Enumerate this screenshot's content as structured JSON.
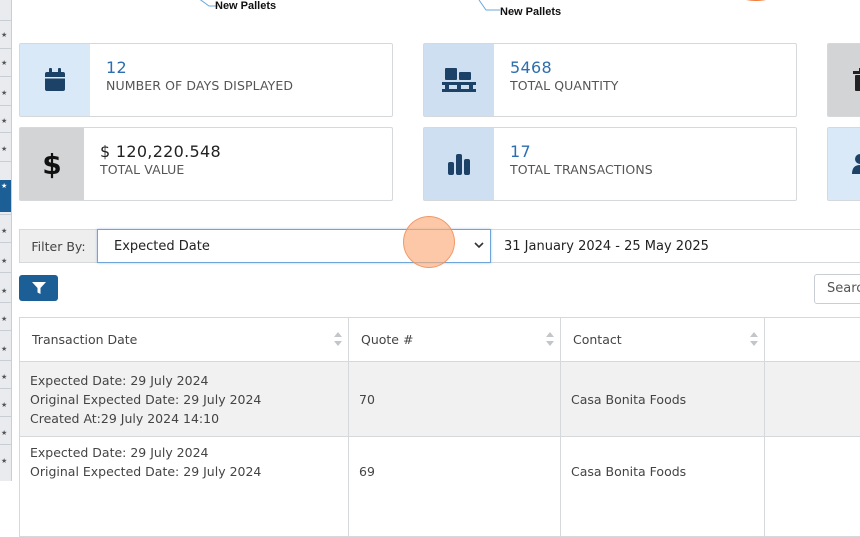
{
  "top_chart_labels": [
    "New Pallets",
    "New Pallets"
  ],
  "colors": {
    "accent": "#2c6eaf",
    "primary_button": "#1c5f97",
    "icon_dark": "#1d4268"
  },
  "cards": [
    {
      "value": "12",
      "label": "NUMBER OF DAYS DISPLAYED",
      "icon": "calendar-icon"
    },
    {
      "value": "5468",
      "label": "TOTAL QUANTITY",
      "icon": "pallet-icon"
    },
    {
      "value": "$ 120,220.548",
      "label": "TOTAL VALUE",
      "icon": "dollar-icon"
    },
    {
      "value": "17",
      "label": "TOTAL TRANSACTIONS",
      "icon": "bar-chart-icon"
    }
  ],
  "filter": {
    "label": "Filter By:",
    "selected": "Expected Date",
    "date_range": "31 January 2024 - 25 May 2025"
  },
  "search": {
    "placeholder": "Searc"
  },
  "table": {
    "columns": [
      "Transaction Date",
      "Quote #",
      "Contact"
    ],
    "rows": [
      {
        "expected": "Expected Date: 29 July 2024",
        "original": "Original Expected Date: 29 July 2024",
        "created": "Created At:29 July 2024 14:10",
        "quote": "70",
        "contact": "Casa Bonita Foods"
      },
      {
        "expected": "Expected Date: 29 July 2024",
        "original": "Original Expected Date: 29 July 2024",
        "quote": "69",
        "contact": "Casa Bonita Foods"
      }
    ]
  }
}
